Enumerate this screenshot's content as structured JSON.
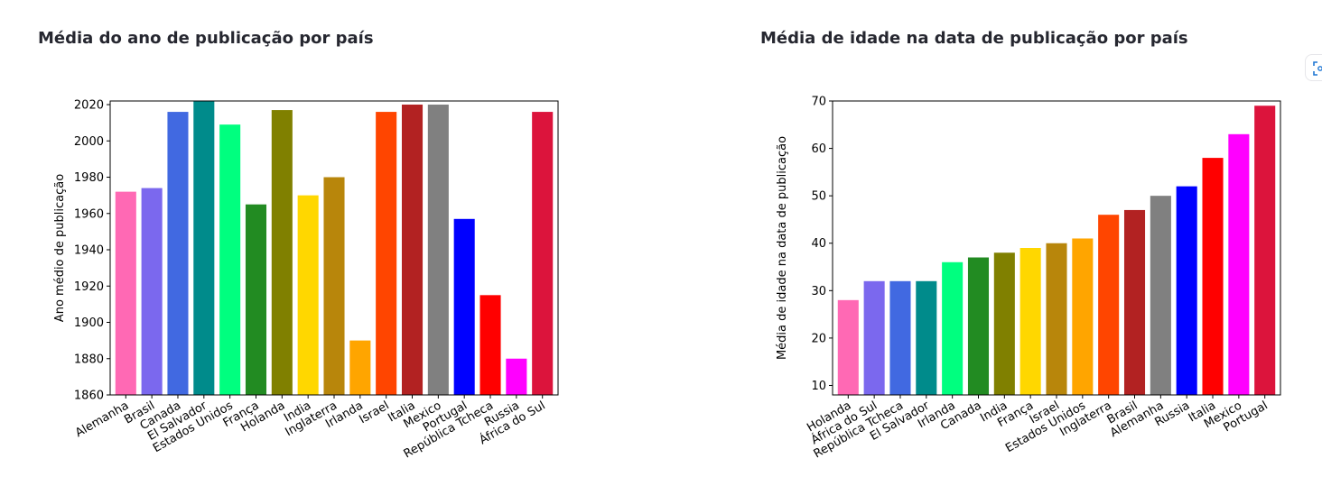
{
  "charts": [
    {
      "title": "Média do ano de publicação por país",
      "chart_data": {
        "type": "bar",
        "categories": [
          "Alemanha",
          "Brasil",
          "Canada",
          "El Salvador",
          "Estados Unidos",
          "França",
          "Holanda",
          "India",
          "Inglaterra",
          "Irlanda",
          "Israel",
          "Italia",
          "Mexico",
          "Portugal",
          "República Tcheca",
          "Russia",
          "África do Sul"
        ],
        "values": [
          1972,
          1974,
          2016,
          2022,
          2009,
          1965,
          2017,
          1970,
          1980,
          1890,
          2016,
          2020,
          2020,
          1957,
          1915,
          1880,
          2016
        ],
        "colors": [
          "#ff69b4",
          "#7b68ee",
          "#4169e1",
          "#008b8b",
          "#00ff7f",
          "#228b22",
          "#808000",
          "#ffd700",
          "#b8860b",
          "#ffa500",
          "#ff4500",
          "#b22222",
          "#808080",
          "#0000ff",
          "#ff0000",
          "#ff00ff",
          "#dc143c"
        ],
        "xlabel": "",
        "ylabel": "Ano médio de publicação",
        "ylim": [
          1860,
          2022
        ],
        "yticks": [
          1860,
          1880,
          1900,
          1920,
          1940,
          1960,
          1980,
          2000,
          2020
        ],
        "grid": false
      }
    },
    {
      "title": "Média de idade na data de publicação por país",
      "chart_data": {
        "type": "bar",
        "categories": [
          "Holanda",
          "África do Sul",
          "República Tcheca",
          "El Salvador",
          "Irlanda",
          "Canada",
          "India",
          "França",
          "Israel",
          "Estados Unidos",
          "Inglaterra",
          "Brasil",
          "Alemanha",
          "Russia",
          "Italia",
          "Mexico",
          "Portugal"
        ],
        "values": [
          28,
          32,
          32,
          32,
          36,
          37,
          38,
          39,
          40,
          41,
          46,
          47,
          50,
          52,
          58,
          63,
          69
        ],
        "colors": [
          "#ff69b4",
          "#7b68ee",
          "#4169e1",
          "#008b8b",
          "#00ff7f",
          "#228b22",
          "#808000",
          "#ffd700",
          "#b8860b",
          "#ffa500",
          "#ff4500",
          "#b22222",
          "#808080",
          "#0000ff",
          "#ff0000",
          "#ff00ff",
          "#dc143c"
        ],
        "xlabel": "",
        "ylabel": "Média de idade na data de publicação",
        "ylim": [
          8,
          70
        ],
        "yticks": [
          10,
          20,
          30,
          40,
          50,
          60,
          70
        ],
        "grid": false
      }
    }
  ],
  "icons": {
    "fullscreen": "fullscreen-icon"
  }
}
